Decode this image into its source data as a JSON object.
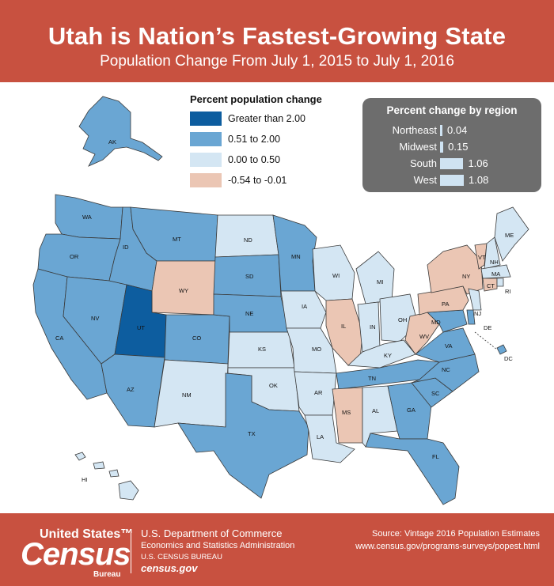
{
  "header": {
    "title": "Utah is Nation’s Fastest-Growing State",
    "subtitle": "Population Change From July 1, 2015 to July 1, 2016"
  },
  "legend": {
    "title": "Percent population change",
    "items": [
      {
        "label": "Greater than 2.00",
        "color": "#0d5d9f"
      },
      {
        "label": "0.51 to 2.00",
        "color": "#6aa6d3"
      },
      {
        "label": "0.00 to 0.50",
        "color": "#d4e6f3"
      },
      {
        "label": "-0.54 to -0.01",
        "color": "#ebc6b4"
      }
    ]
  },
  "regions": {
    "title": "Percent change by region",
    "rows": [
      {
        "name": "Northeast",
        "value": 0.04,
        "label": "0.04"
      },
      {
        "name": "Midwest",
        "value": 0.15,
        "label": "0.15"
      },
      {
        "name": "South",
        "value": 1.06,
        "label": "1.06"
      },
      {
        "name": "West",
        "value": 1.08,
        "label": "1.08"
      }
    ]
  },
  "states": {
    "WA": "mid",
    "OR": "mid",
    "CA": "mid",
    "NV": "mid",
    "ID": "mid",
    "MT": "mid",
    "WY": "neg",
    "UT": "hi",
    "AZ": "mid",
    "CO": "mid",
    "NM": "low",
    "ND": "low",
    "SD": "mid",
    "NE": "mid",
    "KS": "low",
    "OK": "low",
    "TX": "mid",
    "MN": "mid",
    "IA": "low",
    "MO": "low",
    "AR": "low",
    "LA": "low",
    "WI": "low",
    "IL": "neg",
    "MI": "low",
    "IN": "low",
    "OH": "low",
    "KY": "low",
    "TN": "mid",
    "MS": "neg",
    "AL": "low",
    "GA": "mid",
    "FL": "mid",
    "SC": "mid",
    "NC": "mid",
    "VA": "mid",
    "WV": "neg",
    "PA": "neg",
    "NY": "neg",
    "VT": "neg",
    "NH": "low",
    "ME": "low",
    "MA": "low",
    "RI": "low",
    "CT": "neg",
    "NJ": "low",
    "DE": "mid",
    "MD": "mid",
    "DC": "mid",
    "AK": "mid",
    "HI": "low"
  },
  "footer": {
    "logo_us": "United States™",
    "logo_census": "Census",
    "logo_bureau": "Bureau",
    "dept": "U.S. Department of Commerce",
    "esa": "Economics and Statistics Administration",
    "bureau": "U.S. CENSUS BUREAU",
    "cgov": "census.gov",
    "source": "Source: Vintage 2016 Population Estimates",
    "url": "www.census.gov/programs-surveys/popest.html"
  }
}
